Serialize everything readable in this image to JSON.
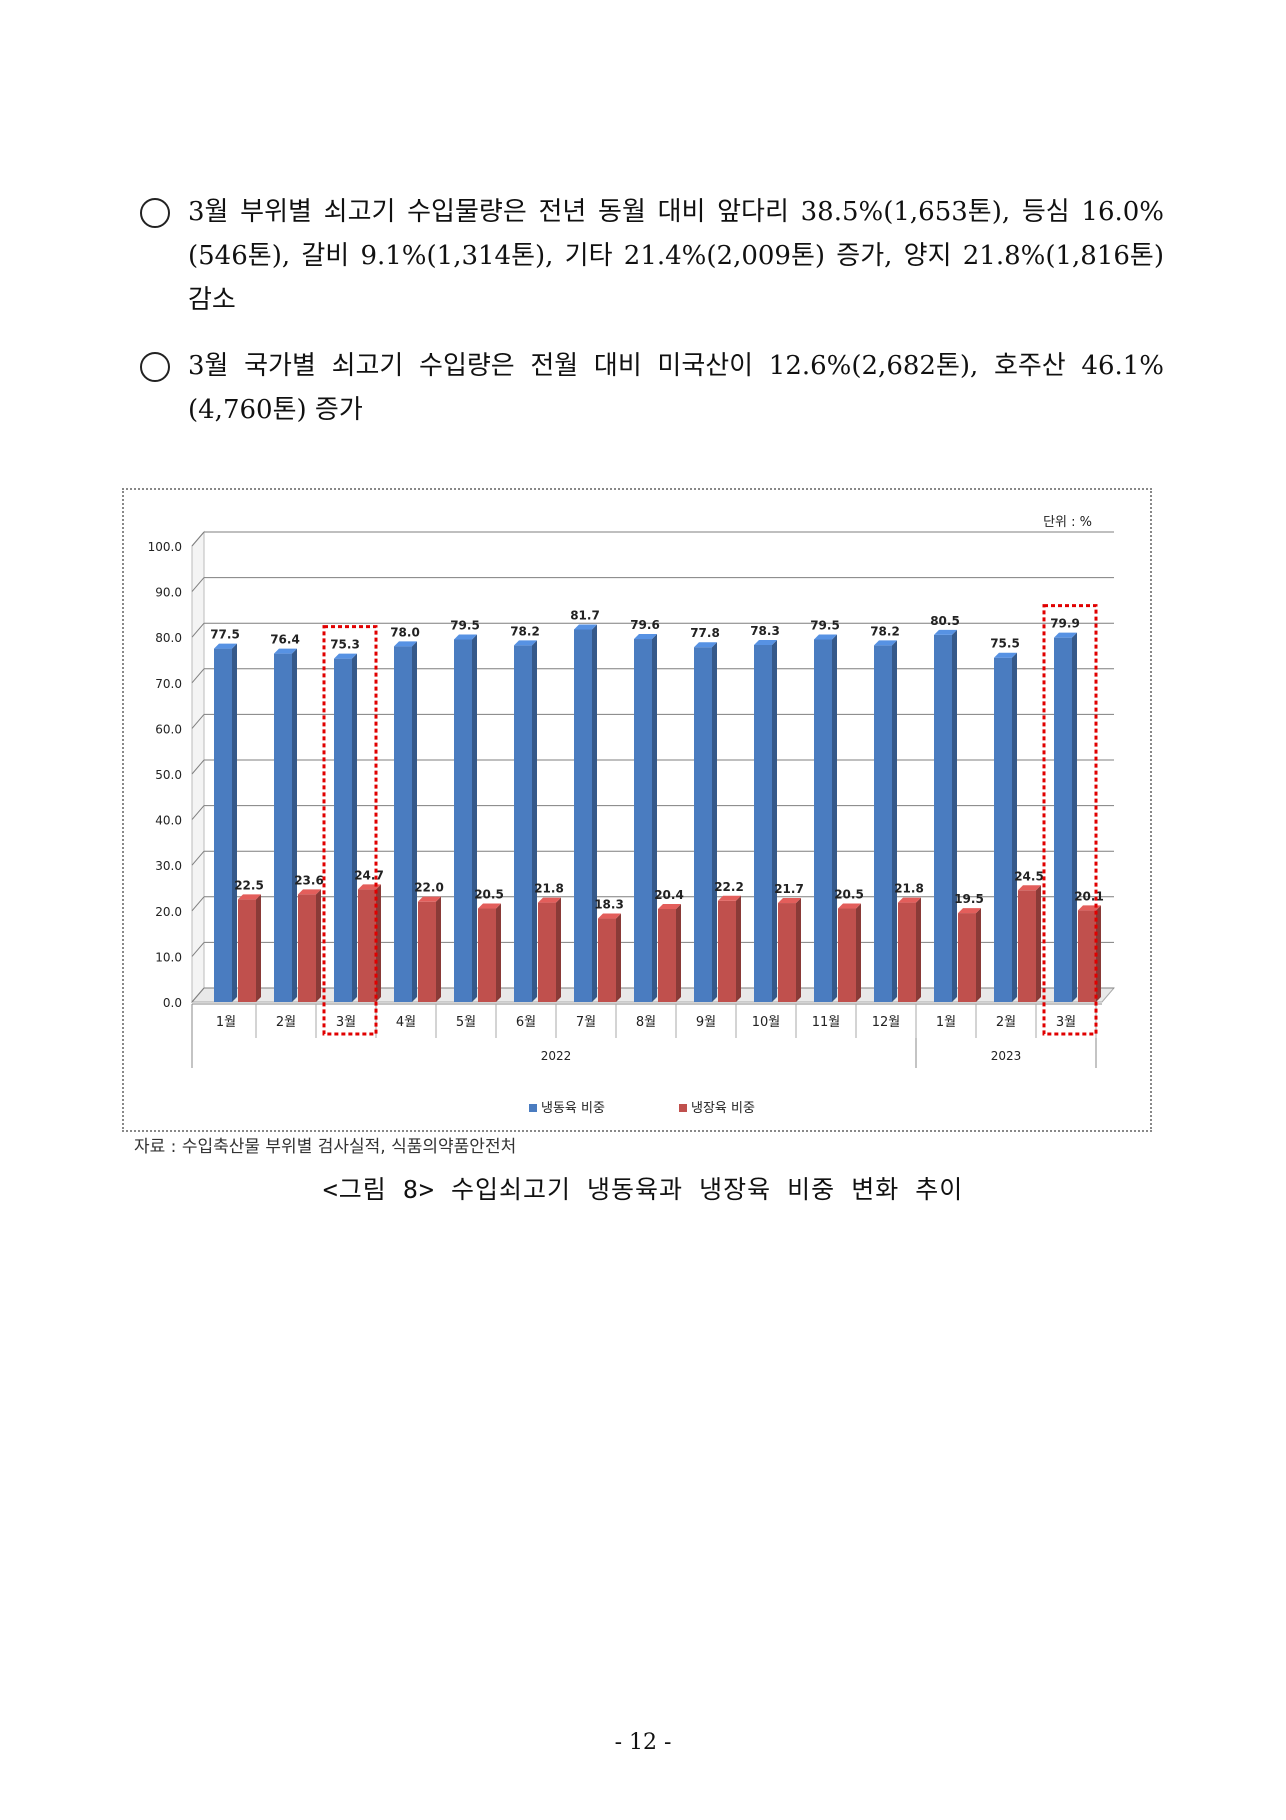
{
  "paragraphs": [
    {
      "text": "3월 부위별 쇠고기 수입물량은 전년 동월 대비 앞다리 38.5%(1,653톤), 등심 16.0%(546톤), 갈비 9.1%(1,314톤), 기타 21.4%(2,009톤) 증가, 양지 21.8%(1,816톤) 감소"
    },
    {
      "text": "3월 국가별 쇠고기 수입량은 전월 대비 미국산이 12.6%(2,682톤), 호주산 46.1%(4,760톤) 증가"
    }
  ],
  "chart_data": {
    "type": "bar",
    "unit_label": "단위 : %",
    "categories": [
      "1월",
      "2월",
      "3월",
      "4월",
      "5월",
      "6월",
      "7월",
      "8월",
      "9월",
      "10월",
      "11월",
      "12월",
      "1월",
      "2월",
      "3월"
    ],
    "groups": [
      {
        "label": "2022",
        "span": 12
      },
      {
        "label": "2023",
        "span": 3
      }
    ],
    "series": [
      {
        "name": "냉동육 비중",
        "color": "#4a7cc0",
        "values": [
          77.5,
          76.4,
          75.3,
          78.0,
          79.5,
          78.2,
          81.7,
          79.6,
          77.8,
          78.3,
          79.5,
          78.2,
          80.5,
          75.5,
          79.9
        ]
      },
      {
        "name": "냉장육 비중",
        "color": "#c0504d",
        "values": [
          22.5,
          23.6,
          24.7,
          22.0,
          20.5,
          21.8,
          18.3,
          20.4,
          22.2,
          21.7,
          20.5,
          21.8,
          19.5,
          24.5,
          20.1
        ]
      }
    ],
    "yticks": [
      "0.0",
      "10.0",
      "20.0",
      "30.0",
      "40.0",
      "50.0",
      "60.0",
      "70.0",
      "80.0",
      "90.0",
      "100.0"
    ],
    "ylim": [
      0,
      100
    ],
    "grid": true,
    "legend_position": "bottom",
    "highlighted_categories": [
      2,
      14
    ]
  },
  "source": "자료 : 수입축산물 부위별 검사실적, 식품의약품안전처",
  "caption": "<그림 8> 수입쇠고기 냉동육과 냉장육 비중 변화 추이",
  "page_number": "- 12 -"
}
